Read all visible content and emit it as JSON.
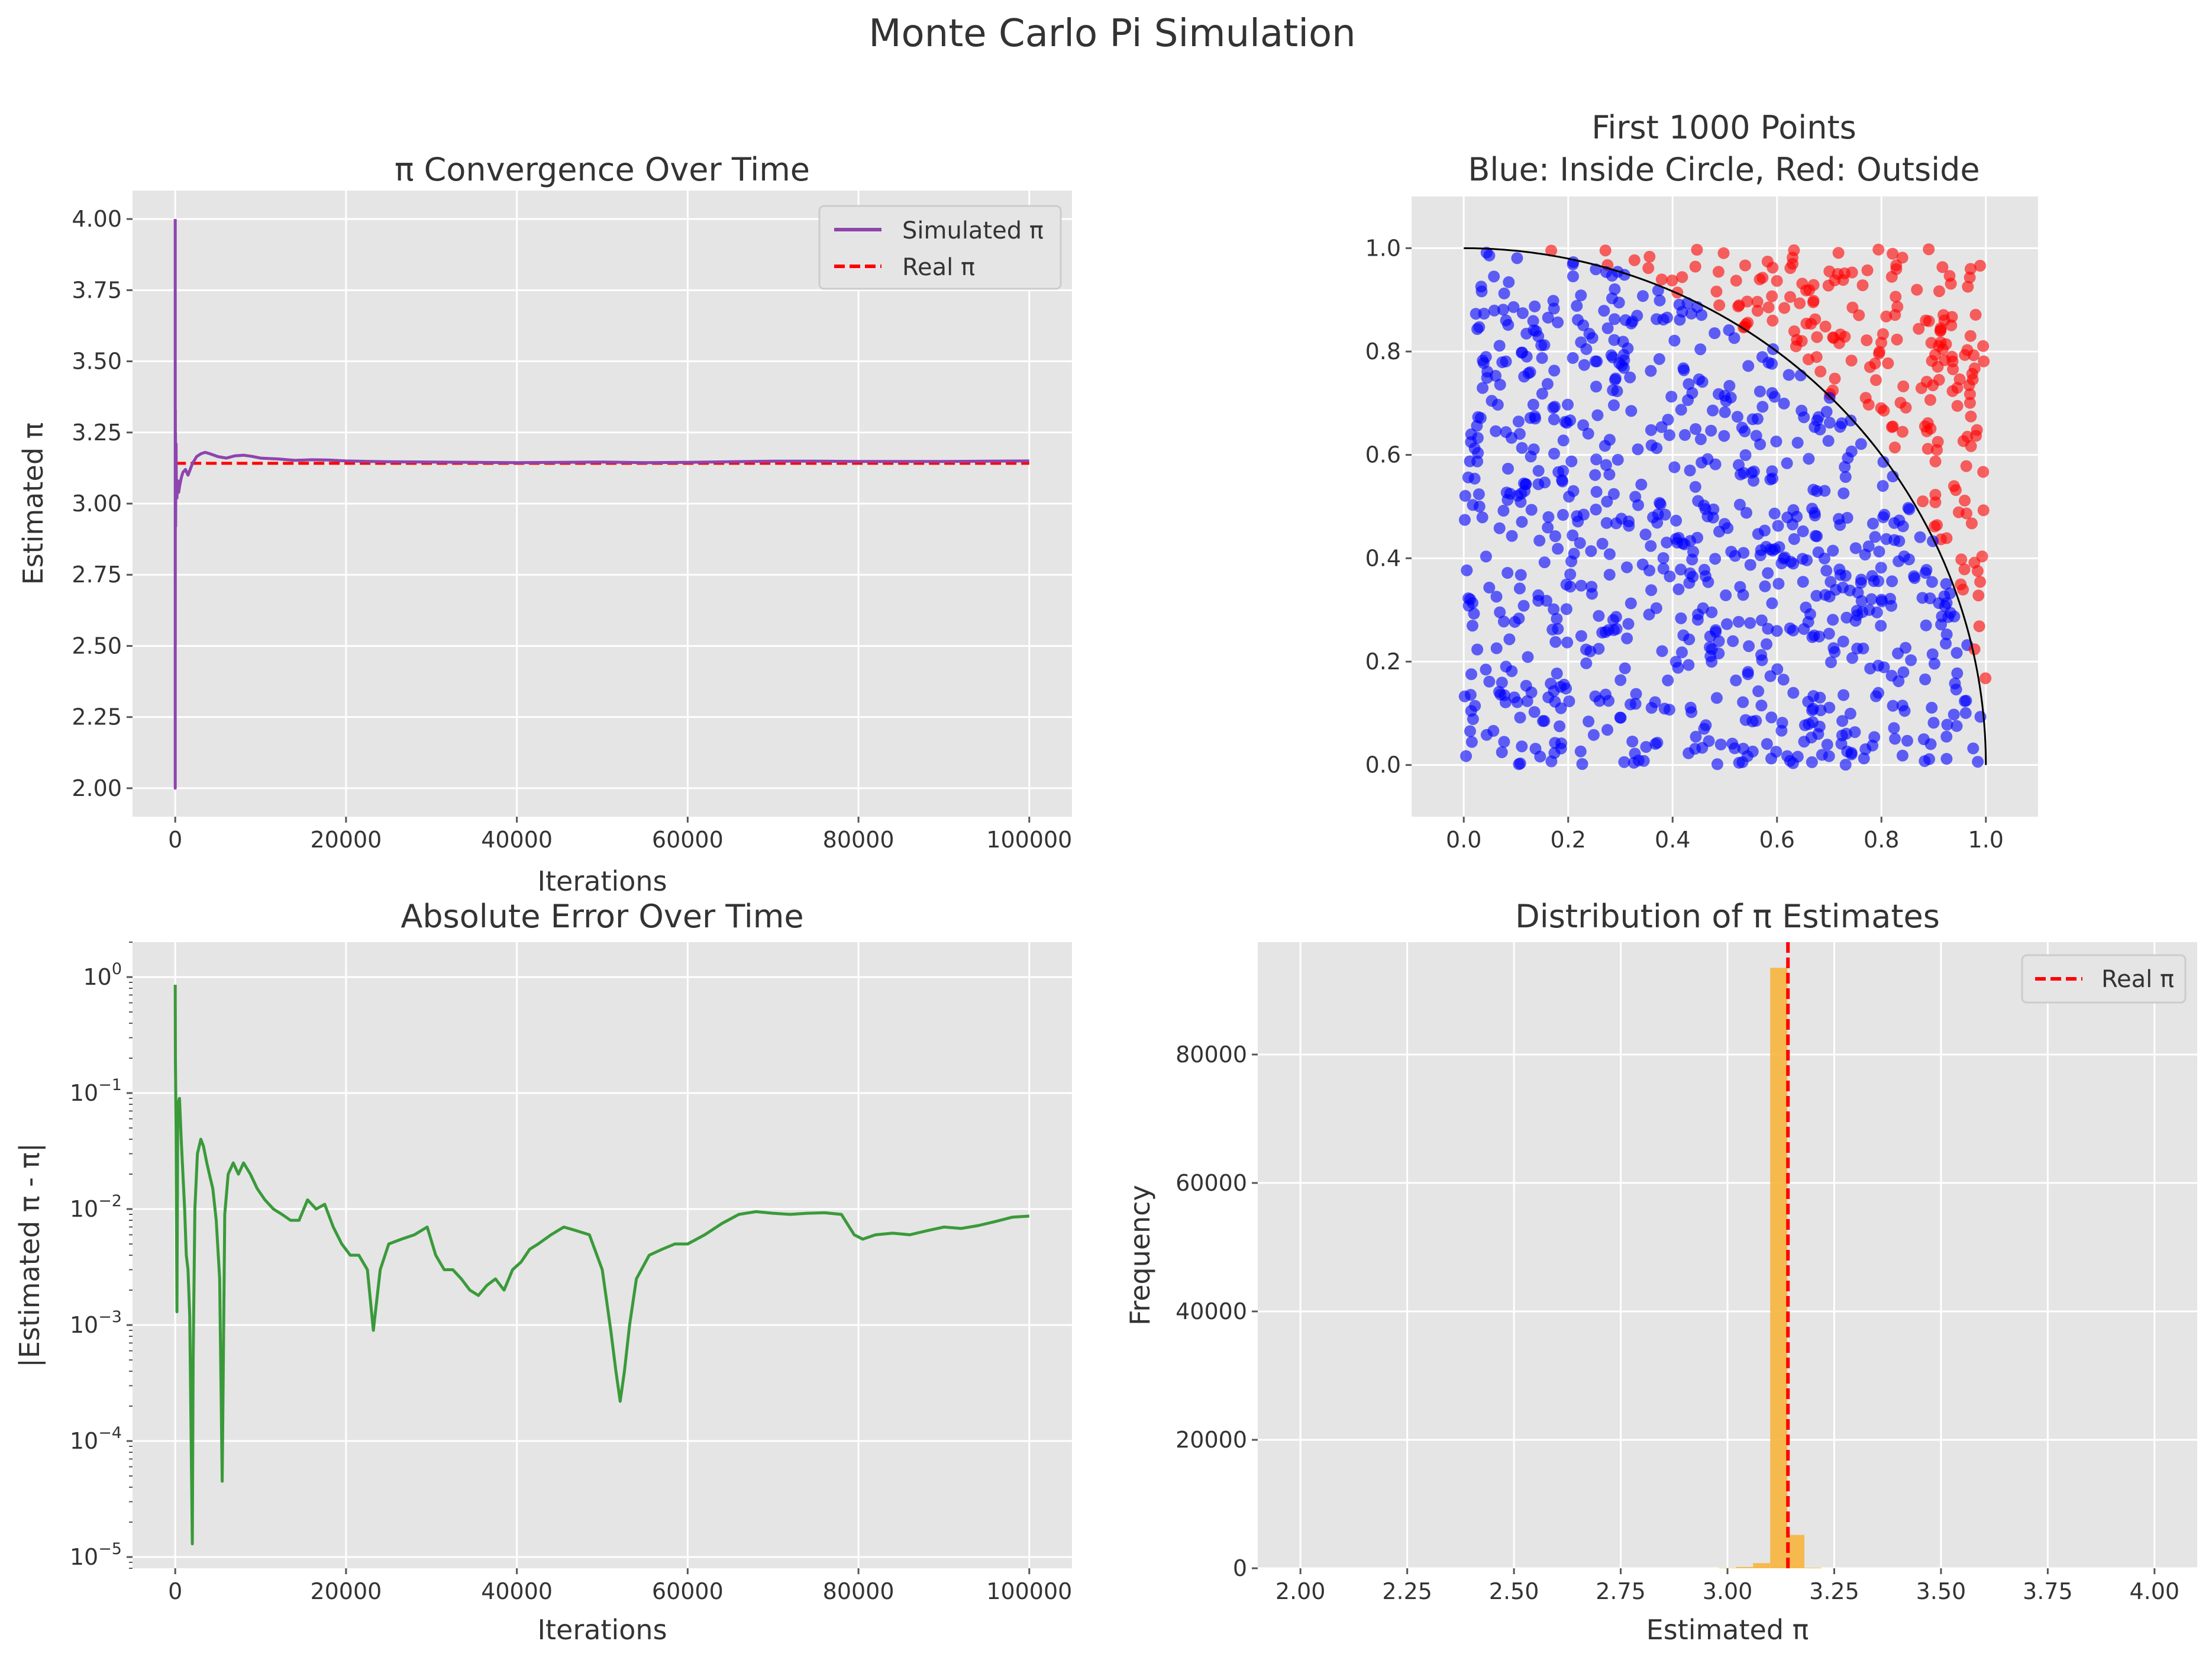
{
  "figure_title": "Monte Carlo Pi Simulation",
  "colors": {
    "panel_bg": "#e5e5e5",
    "grid": "#ffffff",
    "simulated": "#8e44ad",
    "real": "#ff0000",
    "error": "#3a9a3a",
    "inside": "#0000ff",
    "outside": "#ff0000",
    "hist": "#f7b43d"
  },
  "chart_data": [
    {
      "id": "convergence",
      "type": "line",
      "title": "π Convergence Over Time",
      "xlabel": "Iterations",
      "ylabel": "Estimated π",
      "xlim": [
        -5000,
        105000
      ],
      "ylim": [
        1.9,
        4.1
      ],
      "xticks": [
        0,
        20000,
        40000,
        60000,
        80000,
        100000
      ],
      "xtick_labels": [
        "0",
        "20000",
        "40000",
        "60000",
        "80000",
        "100000"
      ],
      "yticks": [
        2.0,
        2.25,
        2.5,
        2.75,
        3.0,
        3.25,
        3.5,
        3.75,
        4.0
      ],
      "ytick_labels": [
        "2.00",
        "2.25",
        "2.50",
        "2.75",
        "3.00",
        "3.25",
        "3.50",
        "3.75",
        "4.00"
      ],
      "grid": true,
      "legend": "upper right",
      "series": [
        {
          "name": "Simulated π",
          "style": "solid",
          "x": [
            1,
            2,
            3,
            4,
            6,
            8,
            12,
            16,
            24,
            32,
            48,
            64,
            96,
            128,
            200,
            300,
            400,
            500,
            700,
            900,
            1200,
            1500,
            2000,
            2500,
            3000,
            3500,
            4000,
            5000,
            6000,
            7000,
            8000,
            9000,
            10000,
            12000,
            14000,
            16000,
            18000,
            20000,
            25000,
            30000,
            35000,
            40000,
            45000,
            50000,
            55000,
            60000,
            65000,
            70000,
            75000,
            80000,
            85000,
            90000,
            95000,
            100000
          ],
          "y": [
            4.0,
            2.0,
            2.67,
            3.0,
            3.33,
            2.5,
            3.33,
            3.0,
            3.17,
            3.25,
            2.92,
            3.06,
            3.21,
            3.09,
            3.02,
            3.08,
            3.04,
            3.06,
            3.09,
            3.11,
            3.12,
            3.1,
            3.14,
            3.165,
            3.175,
            3.18,
            3.176,
            3.165,
            3.16,
            3.168,
            3.17,
            3.166,
            3.16,
            3.157,
            3.152,
            3.154,
            3.153,
            3.15,
            3.147,
            3.146,
            3.145,
            3.144,
            3.145,
            3.146,
            3.144,
            3.145,
            3.147,
            3.149,
            3.149,
            3.148,
            3.148,
            3.148,
            3.149,
            3.15
          ]
        },
        {
          "name": "Real π",
          "style": "dashed",
          "x": [
            0,
            100000
          ],
          "y": [
            3.14159,
            3.14159
          ]
        }
      ]
    },
    {
      "id": "scatter",
      "type": "scatter",
      "title": "First 1000 Points",
      "subtitle": "Blue: Inside Circle, Red: Outside",
      "xlim": [
        -0.1,
        1.1
      ],
      "ylim": [
        -0.1,
        1.1
      ],
      "xticks": [
        0,
        0.2,
        0.4,
        0.6,
        0.8,
        1.0
      ],
      "xtick_labels": [
        "0.0",
        "0.2",
        "0.4",
        "0.6",
        "0.8",
        "1.0"
      ],
      "yticks": [
        0,
        0.2,
        0.4,
        0.6,
        0.8,
        1.0
      ],
      "ytick_labels": [
        "0.0",
        "0.2",
        "0.4",
        "0.6",
        "0.8",
        "1.0"
      ],
      "grid": true,
      "points_total": 1000,
      "circle_radius": 1.0,
      "series": [
        {
          "name": "Inside",
          "rule": "x^2 + y^2 <= 1"
        },
        {
          "name": "Outside",
          "rule": "x^2 + y^2 > 1"
        }
      ]
    },
    {
      "id": "error",
      "type": "line",
      "title": "Absolute Error Over Time",
      "xlabel": "Iterations",
      "ylabel": "|Estimated π - π|",
      "yscale": "log",
      "xlim": [
        -5000,
        105000
      ],
      "ylim": [
        8e-06,
        2.0
      ],
      "xticks": [
        0,
        20000,
        40000,
        60000,
        80000,
        100000
      ],
      "xtick_labels": [
        "0",
        "20000",
        "40000",
        "60000",
        "80000",
        "100000"
      ],
      "yticks": [
        1e-05,
        0.0001,
        0.001,
        0.01,
        0.1,
        1
      ],
      "ytick_mantissa": "10",
      "ytick_exponents": [
        "−5",
        "−4",
        "−3",
        "−2",
        "−1",
        "0"
      ],
      "grid": true,
      "series": [
        {
          "name": "",
          "x": [
            1,
            5,
            20,
            100,
            200,
            300,
            500,
            700,
            900,
            1100,
            1300,
            1500,
            1700,
            1900,
            2000,
            2100,
            2300,
            2600,
            3000,
            3300,
            3700,
            4000,
            4400,
            4800,
            5200,
            5500,
            5800,
            6200,
            6800,
            7400,
            8000,
            8800,
            9600,
            10500,
            11500,
            12500,
            13500,
            14500,
            15500,
            16500,
            17500,
            18500,
            19500,
            20500,
            21500,
            22500,
            23200,
            24000,
            25000,
            26500,
            28000,
            29500,
            30500,
            31500,
            32500,
            33500,
            34500,
            35500,
            36500,
            37500,
            38500,
            39500,
            40500,
            41500,
            42500,
            44000,
            45500,
            47000,
            48500,
            50000,
            51000,
            51600,
            52100,
            52600,
            53200,
            54000,
            55500,
            57000,
            58500,
            60000,
            62000,
            64000,
            66000,
            68000,
            70000,
            72000,
            74000,
            76000,
            78000,
            79500,
            80500,
            82000,
            84000,
            86000,
            88000,
            90000,
            92000,
            94000,
            96000,
            98000,
            100000
          ],
          "y": [
            0.858,
            0.5,
            0.2,
            0.05,
            0.0013,
            0.08,
            0.09,
            0.04,
            0.02,
            0.01,
            0.004,
            0.003,
            0.0012,
            6e-05,
            1.3e-05,
            0.0005,
            0.01,
            0.03,
            0.04,
            0.035,
            0.025,
            0.02,
            0.015,
            0.008,
            0.0025,
            4.5e-05,
            0.009,
            0.02,
            0.025,
            0.02,
            0.025,
            0.02,
            0.015,
            0.012,
            0.01,
            0.009,
            0.008,
            0.008,
            0.012,
            0.01,
            0.011,
            0.007,
            0.005,
            0.004,
            0.004,
            0.003,
            0.0009,
            0.003,
            0.005,
            0.0055,
            0.006,
            0.007,
            0.004,
            0.003,
            0.003,
            0.0025,
            0.002,
            0.0018,
            0.0022,
            0.0025,
            0.002,
            0.003,
            0.0035,
            0.0045,
            0.005,
            0.006,
            0.007,
            0.0065,
            0.006,
            0.003,
            0.0009,
            0.0004,
            0.00022,
            0.0004,
            0.001,
            0.0025,
            0.004,
            0.0045,
            0.005,
            0.005,
            0.006,
            0.0075,
            0.009,
            0.0095,
            0.0092,
            0.009,
            0.0092,
            0.0093,
            0.009,
            0.006,
            0.0055,
            0.006,
            0.0062,
            0.006,
            0.0065,
            0.007,
            0.0068,
            0.0072,
            0.0078,
            0.0085,
            0.0087
          ]
        }
      ]
    },
    {
      "id": "distribution",
      "type": "bar",
      "title": "Distribution of π Estimates",
      "xlabel": "Estimated π",
      "ylabel": "Frequency",
      "xlim": [
        1.9,
        4.1
      ],
      "ylim": [
        0,
        97500
      ],
      "xticks": [
        2.0,
        2.25,
        2.5,
        2.75,
        3.0,
        3.25,
        3.5,
        3.75,
        4.0
      ],
      "xtick_labels": [
        "2.00",
        "2.25",
        "2.50",
        "2.75",
        "3.00",
        "3.25",
        "3.50",
        "3.75",
        "4.00"
      ],
      "yticks": [
        0,
        20000,
        40000,
        60000,
        80000
      ],
      "ytick_labels": [
        "0",
        "20000",
        "40000",
        "60000",
        "80000"
      ],
      "grid": true,
      "legend": "upper right",
      "bin_width": 0.04,
      "bin_starts": [
        2.98,
        3.02,
        3.06,
        3.1,
        3.14,
        3.18
      ],
      "values": [
        60,
        200,
        800,
        93500,
        5200,
        100
      ],
      "reference": {
        "name": "Real π",
        "x": 3.14159,
        "style": "dashed"
      }
    }
  ]
}
